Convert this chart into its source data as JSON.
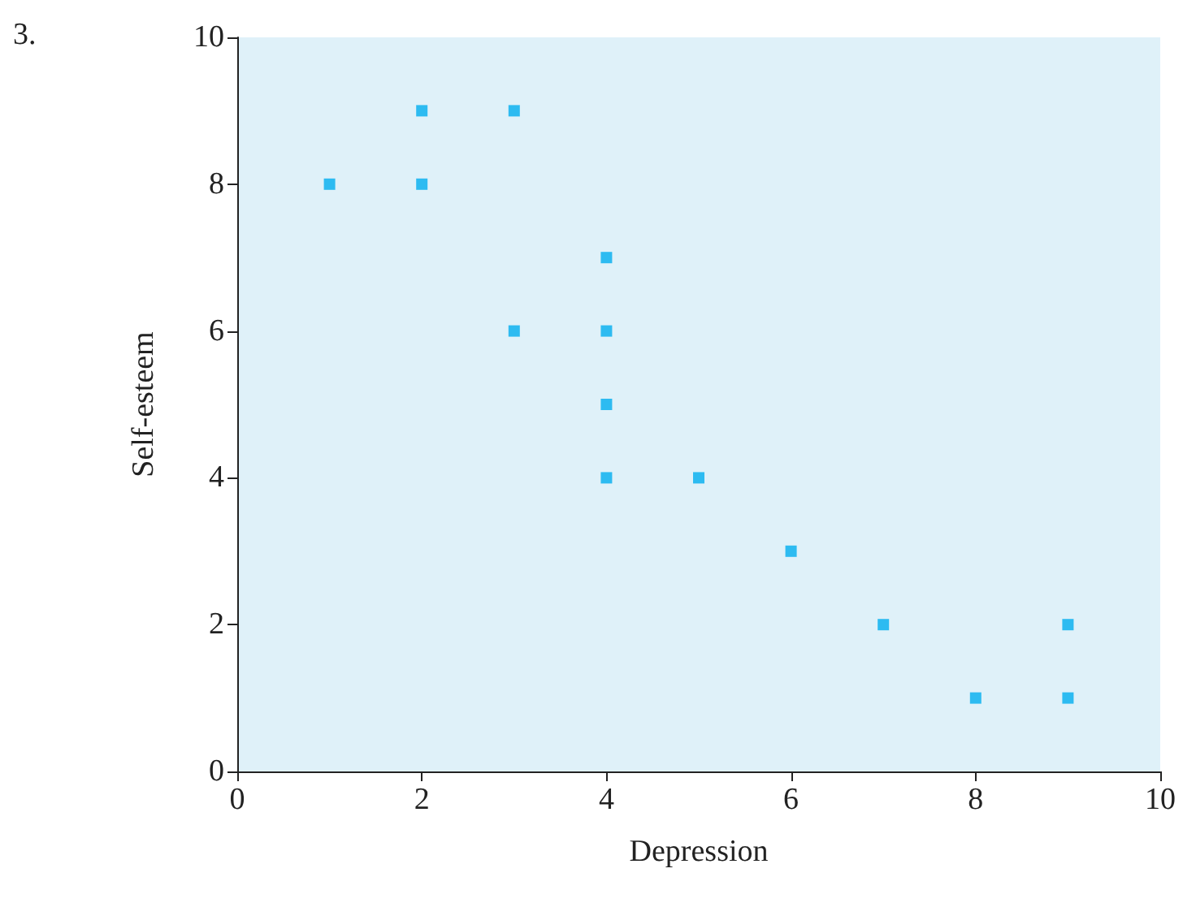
{
  "chart_data": {
    "type": "scatter",
    "annotations": [
      "3."
    ],
    "xlabel": "Depression",
    "ylabel": "Self-esteem",
    "x": [
      1,
      2,
      2,
      3,
      3,
      4,
      4,
      4,
      4,
      5,
      6,
      7,
      8,
      9,
      9
    ],
    "values": [
      8,
      9,
      8,
      9,
      6,
      7,
      6,
      5,
      4,
      4,
      3,
      2,
      1,
      2,
      1
    ],
    "color": "#00aeef",
    "marker": "square",
    "xlim": [
      0,
      10
    ],
    "ylim": [
      0,
      10
    ],
    "xticks": [
      0,
      2,
      4,
      6,
      8,
      10
    ],
    "yticks": [
      0,
      2,
      4,
      6,
      8,
      10
    ]
  }
}
